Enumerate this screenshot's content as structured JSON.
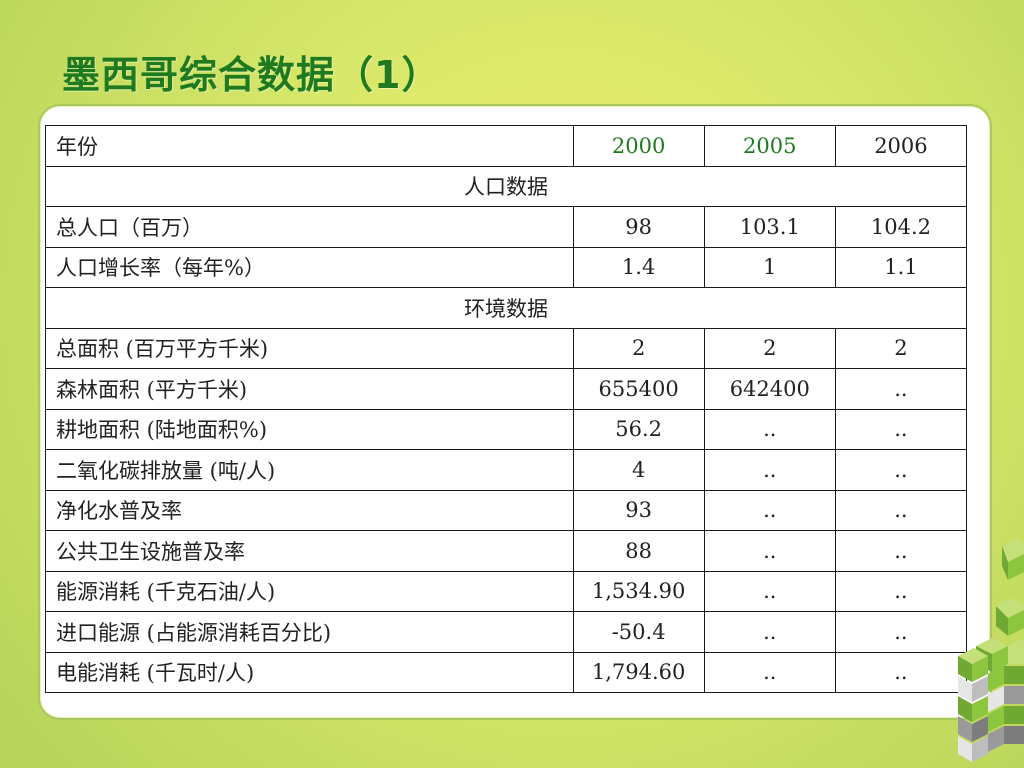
{
  "title": "墨西哥综合数据（1）",
  "table": {
    "header": {
      "label": "年份",
      "years": [
        "2000",
        "2005",
        "2006"
      ]
    },
    "rows": [
      {
        "type": "section",
        "label": "人口数据"
      },
      {
        "type": "data",
        "label": "总人口（百万）",
        "values": [
          "98",
          "103.1",
          "104.2"
        ]
      },
      {
        "type": "data",
        "label": "人口增长率（每年%）",
        "values": [
          "1.4",
          "1",
          "1.1"
        ]
      },
      {
        "type": "section",
        "label": "环境数据"
      },
      {
        "type": "data",
        "label": "总面积 (百万平方千米)",
        "values": [
          "2",
          "2",
          "2"
        ]
      },
      {
        "type": "data",
        "label": "森林面积 (平方千米)",
        "values": [
          "655400",
          "642400",
          ".."
        ]
      },
      {
        "type": "data",
        "label": "耕地面积 (陆地面积%)",
        "values": [
          "56.2",
          "..",
          ".."
        ]
      },
      {
        "type": "data",
        "label": "二氧化碳排放量 (吨/人)",
        "values": [
          "4",
          "..",
          ".."
        ]
      },
      {
        "type": "data",
        "label": "净化水普及率",
        "values": [
          "93",
          "..",
          ".."
        ]
      },
      {
        "type": "data",
        "label": "公共卫生设施普及率",
        "values": [
          "88",
          "..",
          ".."
        ]
      },
      {
        "type": "data",
        "label": "能源消耗 (千克石油/人)",
        "values": [
          "1,534.90",
          "..",
          ".."
        ]
      },
      {
        "type": "data",
        "label": "进口能源 (占能源消耗百分比)",
        "values": [
          "-50.4",
          "..",
          ".."
        ]
      },
      {
        "type": "data",
        "label": "电能消耗 (千瓦时/人)",
        "values": [
          "1,794.60",
          "..",
          ".."
        ]
      }
    ]
  },
  "colors": {
    "title": "#1f7a1f",
    "background": "#e3ec6a",
    "cube_green": "#8cc63f",
    "cube_gray": "#9a9a9a"
  }
}
